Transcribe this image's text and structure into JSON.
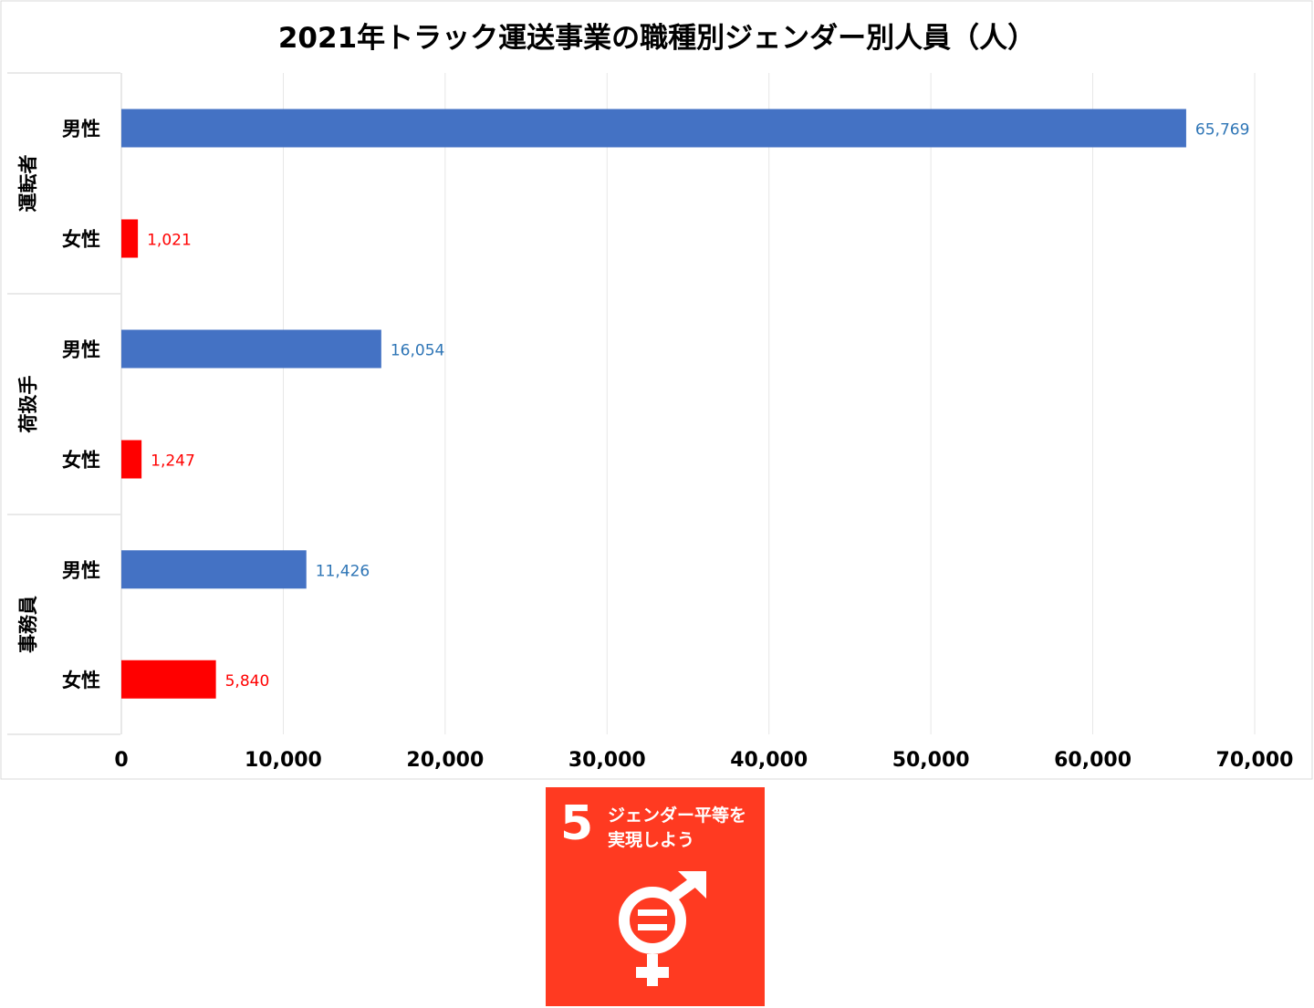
{
  "chart_data": {
    "type": "bar",
    "orientation": "horizontal",
    "title": "2021年トラック運送事業の職種別ジェンダー別人員（人）",
    "groups": [
      {
        "label": "運転者",
        "bars": [
          {
            "label": "男性",
            "value": 65769,
            "value_label": "65,769"
          },
          {
            "label": "女性",
            "value": 1021,
            "value_label": "1,021"
          }
        ]
      },
      {
        "label": "荷扱手",
        "bars": [
          {
            "label": "男性",
            "value": 16054,
            "value_label": "16,054"
          },
          {
            "label": "女性",
            "value": 1247,
            "value_label": "1,247"
          }
        ]
      },
      {
        "label": "事務員",
        "bars": [
          {
            "label": "男性",
            "value": 11426,
            "value_label": "11,426"
          },
          {
            "label": "女性",
            "value": 5840,
            "value_label": "5,840"
          }
        ]
      }
    ],
    "xlim": [
      0,
      70000
    ],
    "ticks": [
      0,
      10000,
      20000,
      30000,
      40000,
      50000,
      60000,
      70000
    ],
    "tick_labels": [
      "0",
      "10,000",
      "20,000",
      "30,000",
      "40,000",
      "50,000",
      "60,000",
      "70,000"
    ],
    "grid": true,
    "colors": {
      "男性": "#4472c4",
      "女性": "#ff0000"
    },
    "label_colors": {
      "男性": "#2e75b6",
      "女性": "#ff0000"
    }
  },
  "badge": {
    "number": "5",
    "line1": "ジェンダー平等を",
    "line2": "実現しよう",
    "icon": "gender-equality-icon",
    "color": "#ff3a21"
  }
}
